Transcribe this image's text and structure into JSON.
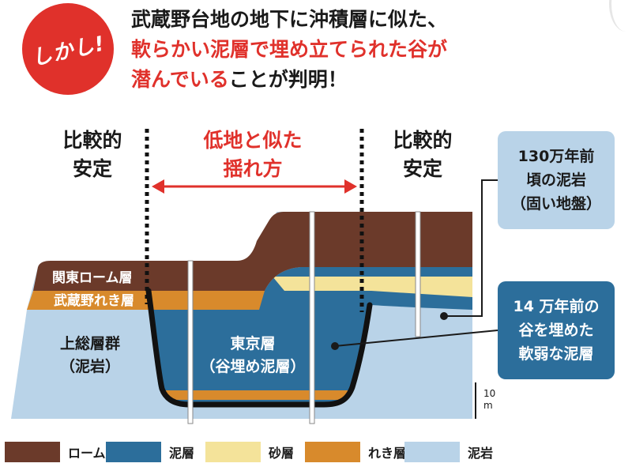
{
  "header": {
    "badge": "しかし!",
    "line1": "武蔵野台地の地下に沖積層に似た、",
    "line2": "軟らかい泥層で埋め立てられた谷が",
    "line3_red": "潜んでいる",
    "line3_rest": "ことが判明！"
  },
  "zones": {
    "left_line1": "比較的",
    "left_line2": "安定",
    "center_line1": "低地と似た",
    "center_line2": "揺れ方",
    "right_line1": "比較的",
    "right_line2": "安定"
  },
  "layers": {
    "loam": "関東ローム層",
    "musashino": "武蔵野れき層",
    "kazusa_line1": "上総層群",
    "kazusa_line2": "（泥岩）",
    "tokyo_line1": "東京層",
    "tokyo_line2": "（谷埋め泥層）"
  },
  "callouts": {
    "bedrock_line1": "130万年前",
    "bedrock_line2": "頃の泥岩",
    "bedrock_line3": "（固い地盤）",
    "valley_line1": "14 万年前の",
    "valley_line2": "谷を埋めた",
    "valley_line3": "軟弱な泥層"
  },
  "scale": {
    "value": "10",
    "unit": "m"
  },
  "legend": [
    {
      "label": "ローム層",
      "color": "#6b3a2a"
    },
    {
      "label": "泥層",
      "color": "#2c6e9b"
    },
    {
      "label": "砂層",
      "color": "#f4e39a"
    },
    {
      "label": "れき層",
      "color": "#d88a2c"
    },
    {
      "label": "泥岩",
      "color": "#b9d3e8"
    }
  ],
  "colors": {
    "accent_red": "#e0312b",
    "loam": "#6b3a2a",
    "mud": "#2c6e9b",
    "sand": "#f4e39a",
    "gravel": "#d88a2c",
    "mudstone": "#b9d3e8"
  }
}
